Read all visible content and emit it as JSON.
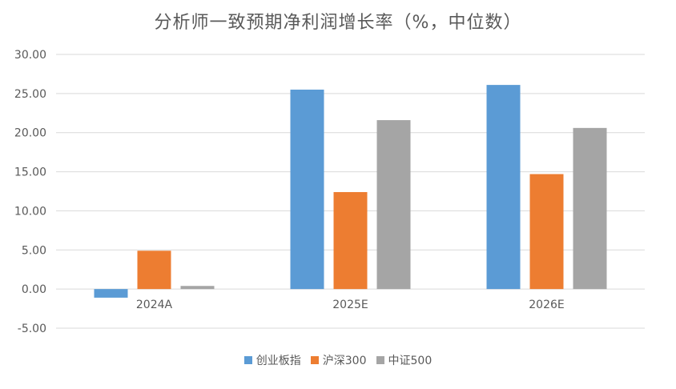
{
  "chart_data": {
    "type": "bar",
    "title": "分析师一致预期净利润增长率（%，中位数）",
    "categories": [
      "2024A",
      "2025E",
      "2026E"
    ],
    "series": [
      {
        "name": "创业板指",
        "color": "#5B9BD5",
        "values": [
          -1.1,
          25.5,
          26.1
        ]
      },
      {
        "name": "沪深300",
        "color": "#ED7D31",
        "values": [
          4.9,
          12.4,
          14.7
        ]
      },
      {
        "name": "中证500",
        "color": "#A5A5A5",
        "values": [
          0.4,
          21.6,
          20.6
        ]
      }
    ],
    "y_ticks": [
      "30.00",
      "25.00",
      "20.00",
      "15.00",
      "10.00",
      "5.00",
      "0.00",
      "-5.00"
    ],
    "ylim": [
      -5,
      30
    ],
    "grid": true,
    "legend_position": "bottom"
  }
}
